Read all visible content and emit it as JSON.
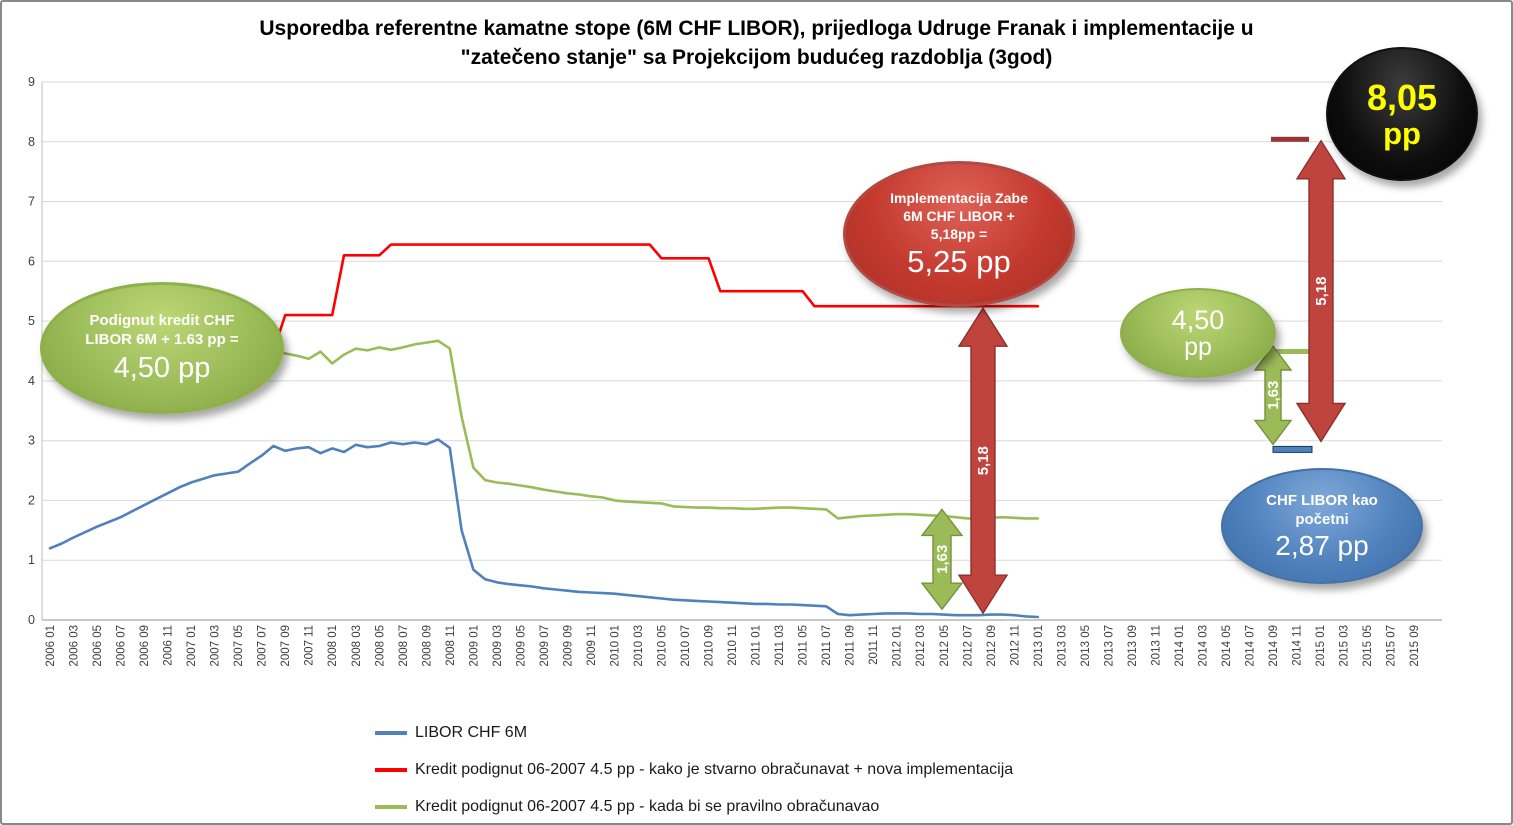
{
  "title": {
    "line1": "Usporedba referentne kamatne stope (6M CHF LIBOR), prijedloga Udruge Franak  i implementacije u",
    "line2": "\"zatečeno stanje\" sa Projekcijom budućeg razdoblja (3god)"
  },
  "chart_data": {
    "type": "line",
    "title": "Usporedba referentne kamatne stope (6M CHF LIBOR), prijedloga Udruge Franak i implementacije u \"zatečeno stanje\" sa Projekcijom budućeg razdoblja (3god)",
    "ylim": [
      0,
      9
    ],
    "y_ticks": [
      0,
      1,
      2,
      3,
      4,
      5,
      6,
      7,
      8,
      9
    ],
    "grid": "horizontal",
    "x_note": "monthly series, tick labels every 2 months",
    "x_tick_labels": [
      "2006 01",
      "2006 03",
      "2006 05",
      "2006 07",
      "2006 09",
      "2006 11",
      "2007 01",
      "2007 03",
      "2007 05",
      "2007 07",
      "2007 09",
      "2007 11",
      "2008 01",
      "2008 03",
      "2008 05",
      "2008 07",
      "2008 09",
      "2008 11",
      "2009 01",
      "2009 03",
      "2009 05",
      "2009 07",
      "2009 09",
      "2009 11",
      "2010 01",
      "2010 03",
      "2010 05",
      "2010 07",
      "2010 09",
      "2010 11",
      "2011 01",
      "2011 03",
      "2011 05",
      "2011 07",
      "2011 09",
      "2011 11",
      "2012 01",
      "2012 03",
      "2012 05",
      "2012 07",
      "2012 09",
      "2012 11",
      "2013 01",
      "2013 03",
      "2013 05",
      "2013 07",
      "2013 09",
      "2013 11",
      "2014 01",
      "2014 03",
      "2014 05",
      "2014 07",
      "2014 09",
      "2014 11",
      "2015 01",
      "2015 03",
      "2015 05",
      "2015 07",
      "2015 09"
    ],
    "series": [
      {
        "name": "LIBOR CHF 6M",
        "color": "#4F81BD",
        "start_month": "2006-01",
        "start_index": 0,
        "values": [
          1.2,
          1.28,
          1.38,
          1.47,
          1.56,
          1.64,
          1.72,
          1.82,
          1.92,
          2.02,
          2.12,
          2.22,
          2.3,
          2.36,
          2.42,
          2.45,
          2.48,
          2.62,
          2.75,
          2.91,
          2.83,
          2.87,
          2.89,
          2.79,
          2.87,
          2.81,
          2.93,
          2.89,
          2.91,
          2.97,
          2.94,
          2.97,
          2.94,
          3.02,
          2.88,
          1.5,
          0.84,
          0.68,
          0.63,
          0.6,
          0.58,
          0.56,
          0.53,
          0.51,
          0.49,
          0.47,
          0.46,
          0.45,
          0.44,
          0.42,
          0.4,
          0.38,
          0.36,
          0.34,
          0.33,
          0.32,
          0.31,
          0.3,
          0.29,
          0.28,
          0.27,
          0.27,
          0.26,
          0.26,
          0.25,
          0.24,
          0.23,
          0.1,
          0.08,
          0.09,
          0.1,
          0.11,
          0.11,
          0.11,
          0.1,
          0.1,
          0.09,
          0.08,
          0.08,
          0.08,
          0.09,
          0.09,
          0.08,
          0.06,
          0.05
        ]
      },
      {
        "name": "Kredit podignut 06-2007 4.5 pp - kako je stvarno obračunavat + nova implementacija",
        "color": "#FF0000",
        "start_month": "2007-08",
        "start_index": 19,
        "values": [
          4.5,
          5.1,
          5.1,
          5.1,
          5.1,
          5.1,
          6.1,
          6.1,
          6.1,
          6.1,
          6.28,
          6.28,
          6.28,
          6.28,
          6.28,
          6.28,
          6.28,
          6.28,
          6.28,
          6.28,
          6.28,
          6.28,
          6.28,
          6.28,
          6.28,
          6.28,
          6.28,
          6.28,
          6.28,
          6.28,
          6.28,
          6.28,
          6.28,
          6.05,
          6.05,
          6.05,
          6.05,
          6.05,
          5.5,
          5.5,
          5.5,
          5.5,
          5.5,
          5.5,
          5.5,
          5.5,
          5.25,
          5.25,
          5.25,
          5.25,
          5.25,
          5.25,
          5.25,
          5.25,
          5.25,
          5.25,
          5.25,
          5.25,
          5.25,
          5.25,
          5.25,
          5.25,
          5.25,
          5.25,
          5.25,
          5.25
        ]
      },
      {
        "name": "Kredit podignut 06-2007 4.5 pp - kada bi se pravilno obračunavao",
        "color": "#9BBB59",
        "start_month": "2007-08",
        "start_index": 19,
        "values": [
          4.5,
          4.46,
          4.42,
          4.37,
          4.49,
          4.29,
          4.44,
          4.54,
          4.51,
          4.56,
          4.52,
          4.56,
          4.61,
          4.64,
          4.67,
          4.54,
          3.4,
          2.55,
          2.34,
          2.3,
          2.28,
          2.25,
          2.22,
          2.18,
          2.15,
          2.12,
          2.1,
          2.07,
          2.05,
          2.0,
          1.98,
          1.97,
          1.96,
          1.95,
          1.9,
          1.89,
          1.88,
          1.88,
          1.87,
          1.87,
          1.86,
          1.86,
          1.87,
          1.88,
          1.88,
          1.87,
          1.86,
          1.85,
          1.7,
          1.72,
          1.74,
          1.75,
          1.76,
          1.77,
          1.77,
          1.76,
          1.75,
          1.74,
          1.72,
          1.7,
          1.7,
          1.71,
          1.72,
          1.71,
          1.7,
          1.7
        ]
      }
    ],
    "level_markers": [
      {
        "value": 8.05,
        "color": "#963634"
      },
      {
        "value": 4.5,
        "color": "#9BBB59"
      },
      {
        "value": 2.87,
        "color": "#4F81BD"
      }
    ],
    "arrow_annotations": [
      {
        "id": "mid-green",
        "label": "1,63",
        "from_value": 1.7,
        "to_value": 0.08,
        "color": "#9BBB59"
      },
      {
        "id": "mid-red",
        "label": "5,18",
        "from_value": 5.25,
        "to_value": 0.08,
        "color": "#C0443E"
      },
      {
        "id": "right-green",
        "label": "1,63",
        "from_value": 4.5,
        "to_value": 2.87,
        "color": "#9BBB59"
      },
      {
        "id": "right-red",
        "label": "5,18",
        "from_value": 8.05,
        "to_value": 2.87,
        "color": "#C0443E"
      }
    ],
    "legend_position": "bottom-left"
  },
  "legend": {
    "items": [
      {
        "label": "LIBOR CHF 6M",
        "color": "#4F81BD"
      },
      {
        "label": "Kredit podignut 06-2007   4.5 pp  - kako je stvarno obračunavat + nova implementacija",
        "color": "#FF0000"
      },
      {
        "label": "Kredit podignut 06-2007   4.5 pp  - kada bi se pravilno obračunavao",
        "color": "#9BBB59"
      }
    ]
  },
  "callouts": {
    "podignut_kredit": {
      "line1": "Podignut kredit CHF",
      "line2": "LIBOR 6M + 1.63 pp =",
      "value": "4,50 pp"
    },
    "implementacija": {
      "line1": "Implementacija Zabe",
      "line2": "6M CHF LIBOR +",
      "line3": "5,18pp =",
      "value": "5,25 pp"
    },
    "projection_black": {
      "value": "8,05",
      "unit": "pp"
    },
    "projection_green": {
      "value": "4,50",
      "unit": "pp"
    },
    "chf_libor_pocetni": {
      "line1": "CHF LIBOR kao",
      "line2": "početni",
      "value": "2,87 pp"
    }
  }
}
